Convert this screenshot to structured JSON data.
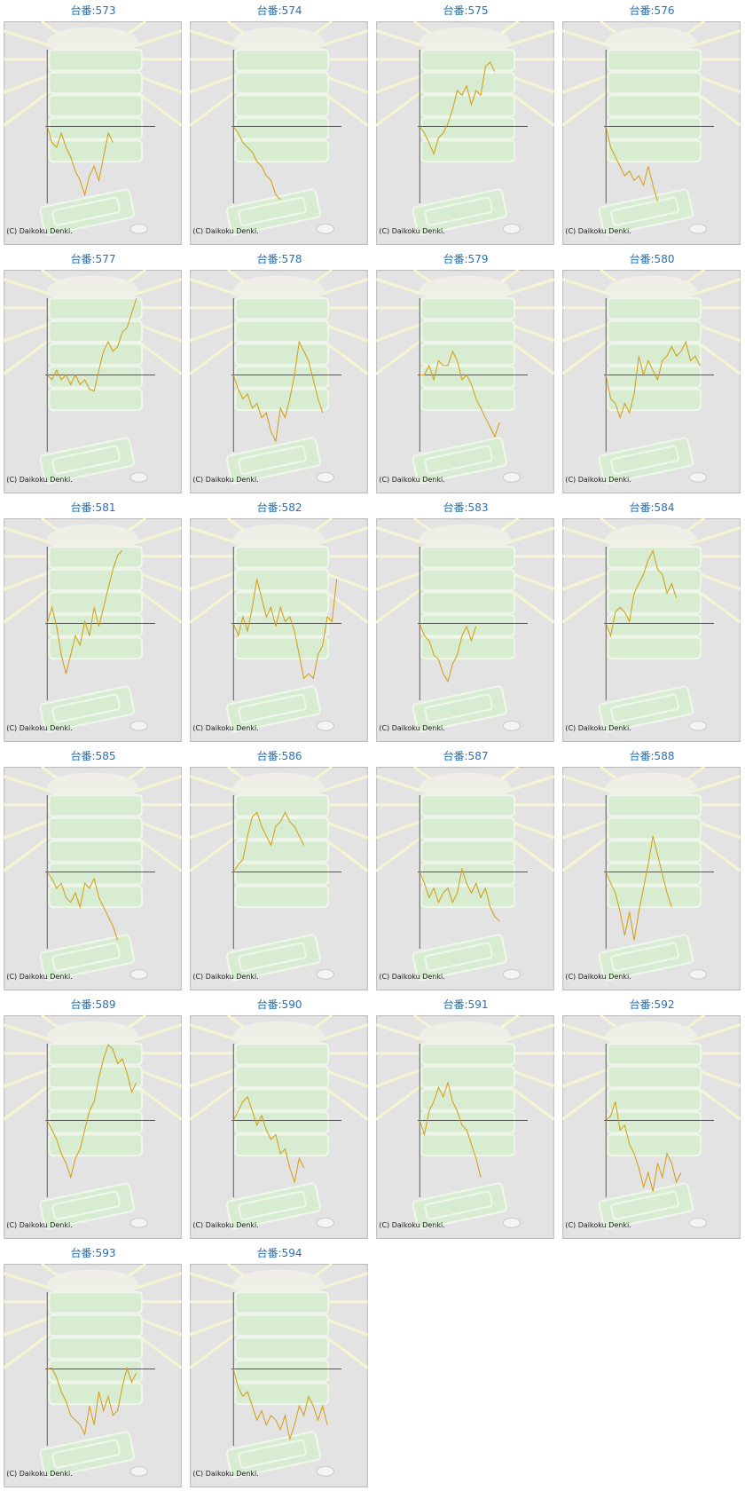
{
  "copyright": "(C) Daikoku Denki.",
  "chart_data": [
    {
      "type": "line",
      "title": "台番:573",
      "color": "#d4a017",
      "xlim": [
        0,
        23
      ],
      "ylim": [
        -81,
        81
      ],
      "values": [
        0,
        -17,
        -22,
        -7,
        -22,
        -32,
        -47,
        -57,
        -72,
        -52,
        -42,
        -57,
        -32,
        -7,
        -17
      ]
    },
    {
      "type": "line",
      "title": "台番:574",
      "color": "#d4a017",
      "xlim": [
        0,
        23
      ],
      "ylim": [
        -81,
        81
      ],
      "values": [
        0,
        -7,
        -17,
        -22,
        -27,
        -37,
        -42,
        -52,
        -57,
        -72,
        -77
      ]
    },
    {
      "type": "line",
      "title": "台番:575",
      "color": "#d4a017",
      "xlim": [
        0,
        23
      ],
      "ylim": [
        -81,
        81
      ],
      "values": [
        0,
        -7,
        -17,
        -29,
        -12,
        -7,
        3,
        18,
        38,
        33,
        43,
        23,
        38,
        33,
        63,
        68,
        58
      ]
    },
    {
      "type": "line",
      "title": "台番:576",
      "color": "#d4a017",
      "xlim": [
        0,
        23
      ],
      "ylim": [
        -81,
        81
      ],
      "values": [
        0,
        -22,
        -32,
        -42,
        -52,
        -47,
        -57,
        -52,
        -62,
        -42,
        -62,
        -79
      ]
    },
    {
      "type": "line",
      "title": "台番:577",
      "color": "#d4a017",
      "xlim": [
        0,
        23
      ],
      "ylim": [
        -81,
        81
      ],
      "values": [
        0,
        -5,
        5,
        -5,
        0,
        -10,
        0,
        -10,
        -5,
        -15,
        -17,
        5,
        25,
        35,
        25,
        30,
        45,
        50,
        65,
        81
      ]
    },
    {
      "type": "line",
      "title": "台番:578",
      "color": "#d4a017",
      "xlim": [
        0,
        23
      ],
      "ylim": [
        -81,
        81
      ],
      "values": [
        0,
        -15,
        -25,
        -20,
        -35,
        -30,
        -45,
        -40,
        -60,
        -70,
        -35,
        -45,
        -25,
        0,
        35,
        25,
        15,
        -5,
        -25,
        -40
      ]
    },
    {
      "type": "line",
      "title": "台番:579",
      "color": "#d4a017",
      "xlim": [
        0,
        23
      ],
      "ylim": [
        -81,
        81
      ],
      "values": [
        0,
        0,
        10,
        -5,
        15,
        10,
        10,
        25,
        15,
        -5,
        0,
        -10,
        -25,
        -35,
        -45,
        -55,
        -65,
        -50
      ]
    },
    {
      "type": "line",
      "title": "台番:580",
      "color": "#d4a017",
      "xlim": [
        0,
        23
      ],
      "ylim": [
        -81,
        81
      ],
      "values": [
        0,
        -25,
        -30,
        -45,
        -30,
        -40,
        -20,
        20,
        0,
        15,
        5,
        -5,
        15,
        20,
        30,
        20,
        25,
        35,
        15,
        20,
        10
      ]
    },
    {
      "type": "line",
      "title": "台番:581",
      "color": "#d4a017",
      "xlim": [
        0,
        23
      ],
      "ylim": [
        -81,
        81
      ],
      "values": [
        0,
        17,
        -3,
        -33,
        -53,
        -33,
        -13,
        -23,
        2,
        -13,
        17,
        -3,
        17,
        37,
        57,
        72,
        77
      ]
    },
    {
      "type": "line",
      "title": "台番:582",
      "color": "#d4a017",
      "xlim": [
        0,
        23
      ],
      "ylim": [
        -81,
        81
      ],
      "values": [
        0,
        -13,
        7,
        -8,
        17,
        47,
        27,
        7,
        17,
        -3,
        17,
        2,
        7,
        -8,
        -33,
        -58,
        -53,
        -58,
        -33,
        -23,
        7,
        2,
        47
      ]
    },
    {
      "type": "line",
      "title": "台番:583",
      "color": "#d4a017",
      "xlim": [
        0,
        23
      ],
      "ylim": [
        -81,
        81
      ],
      "values": [
        0,
        -13,
        -18,
        -33,
        -38,
        -53,
        -61,
        -43,
        -33,
        -13,
        -3,
        -18,
        -3
      ]
    },
    {
      "type": "line",
      "title": "台番:584",
      "color": "#d4a017",
      "xlim": [
        0,
        23
      ],
      "ylim": [
        -81,
        81
      ],
      "values": [
        0,
        -13,
        12,
        17,
        12,
        2,
        32,
        42,
        52,
        67,
        77,
        57,
        52,
        32,
        42,
        27
      ]
    },
    {
      "type": "line",
      "title": "台番:585",
      "color": "#d4a017",
      "xlim": [
        0,
        23
      ],
      "ylim": [
        -81,
        81
      ],
      "values": [
        0,
        -7,
        -17,
        -12,
        -27,
        -32,
        -22,
        -37,
        -12,
        -17,
        -7,
        -27,
        -37,
        -47,
        -57,
        -72
      ]
    },
    {
      "type": "line",
      "title": "台番:586",
      "color": "#d4a017",
      "xlim": [
        0,
        23
      ],
      "ylim": [
        -81,
        81
      ],
      "values": [
        0,
        8,
        13,
        38,
        58,
        63,
        48,
        38,
        28,
        48,
        53,
        63,
        53,
        48,
        38,
        28
      ]
    },
    {
      "type": "line",
      "title": "台番:587",
      "color": "#d4a017",
      "xlim": [
        0,
        23
      ],
      "ylim": [
        -81,
        81
      ],
      "values": [
        0,
        -12,
        -27,
        -17,
        -32,
        -22,
        -17,
        -32,
        -22,
        3,
        -12,
        -22,
        -12,
        -27,
        -17,
        -37,
        -47,
        -52
      ]
    },
    {
      "type": "line",
      "title": "台番:588",
      "color": "#d4a017",
      "xlim": [
        0,
        23
      ],
      "ylim": [
        -81,
        81
      ],
      "values": [
        0,
        -12,
        -22,
        -42,
        -67,
        -42,
        -72,
        -42,
        -17,
        8,
        38,
        18,
        -2,
        -22,
        -37
      ]
    },
    {
      "type": "line",
      "title": "台番:589",
      "color": "#d4a017",
      "xlim": [
        0,
        23
      ],
      "ylim": [
        -81,
        81
      ],
      "values": [
        0,
        -10,
        -20,
        -35,
        -45,
        -60,
        -40,
        -30,
        -10,
        10,
        20,
        45,
        65,
        80,
        75,
        60,
        65,
        50,
        30,
        40
      ]
    },
    {
      "type": "line",
      "title": "台番:590",
      "color": "#d4a017",
      "xlim": [
        0,
        23
      ],
      "ylim": [
        -81,
        81
      ],
      "values": [
        0,
        10,
        20,
        25,
        10,
        -5,
        5,
        -10,
        -20,
        -15,
        -35,
        -30,
        -50,
        -65,
        -40,
        -50
      ]
    },
    {
      "type": "line",
      "title": "台番:591",
      "color": "#d4a017",
      "xlim": [
        0,
        23
      ],
      "ylim": [
        -81,
        81
      ],
      "values": [
        0,
        -15,
        10,
        20,
        35,
        25,
        40,
        20,
        10,
        -5,
        -10,
        -25,
        -40,
        -60
      ]
    },
    {
      "type": "line",
      "title": "台番:592",
      "color": "#d4a017",
      "xlim": [
        0,
        23
      ],
      "ylim": [
        -81,
        81
      ],
      "values": [
        0,
        5,
        20,
        -10,
        -5,
        -25,
        -35,
        -50,
        -70,
        -55,
        -75,
        -45,
        -60,
        -35,
        -45,
        -65,
        -55
      ]
    },
    {
      "type": "line",
      "title": "台番:593",
      "color": "#d4a017",
      "xlim": [
        0,
        23
      ],
      "ylim": [
        -81,
        81
      ],
      "values": [
        0,
        1,
        -9,
        -24,
        -34,
        -49,
        -54,
        -59,
        -69,
        -39,
        -59,
        -24,
        -44,
        -29,
        -49,
        -44,
        -19,
        1,
        -14,
        -4
      ]
    },
    {
      "type": "line",
      "title": "台番:594",
      "color": "#d4a017",
      "xlim": [
        0,
        23
      ],
      "ylim": [
        -81,
        81
      ],
      "values": [
        0,
        -19,
        -29,
        -24,
        -39,
        -54,
        -44,
        -59,
        -49,
        -54,
        -64,
        -49,
        -74,
        -59,
        -39,
        -49,
        -29,
        -39,
        -54,
        -39,
        -59
      ]
    }
  ]
}
